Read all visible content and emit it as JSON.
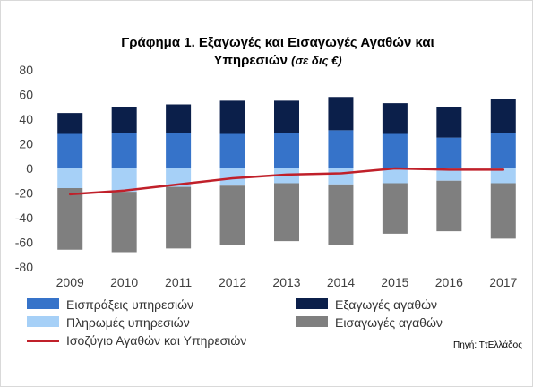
{
  "title": "Γράφημα 1. Εξαγωγές και Εισαγωγές Αγαθών και",
  "title_line2": "Υπηρεσιών",
  "title_unit": "(σε δις €)",
  "source": "Πηγή: ΤτΕλλάδος",
  "colors": {
    "services_receipts": "#3673c9",
    "goods_exports": "#0b1f4a",
    "services_payments": "#a6d0f7",
    "goods_imports": "#7f7f7f",
    "balance": "#c0202a"
  },
  "chart_data": {
    "type": "bar",
    "stacked": true,
    "categories": [
      "2009",
      "2010",
      "2011",
      "2012",
      "2013",
      "2014",
      "2015",
      "2016",
      "2017"
    ],
    "ylim": [
      -80,
      80
    ],
    "yticks": [
      80,
      60,
      40,
      20,
      0,
      -20,
      -40,
      -60,
      -80
    ],
    "series": [
      {
        "name": "Εισπράξεις υπηρεσιών",
        "values": [
          28,
          29,
          29,
          28,
          29,
          31,
          28,
          25,
          29
        ]
      },
      {
        "name": "Εξαγωγές αγαθών",
        "values": [
          17,
          21,
          23,
          27,
          26,
          27,
          25,
          25,
          27
        ]
      },
      {
        "name": "Πληρωμές υπηρεσιών",
        "values": [
          -16,
          -19,
          -15,
          -14,
          -12,
          -13,
          -12,
          -10,
          -12
        ]
      },
      {
        "name": "Εισαγωγές αγαθών",
        "values": [
          -50,
          -49,
          -50,
          -48,
          -47,
          -49,
          -41,
          -41,
          -45
        ]
      }
    ],
    "line": {
      "name": "Ισοζύγιο Αγαθών και Υπηρεσιών",
      "values": [
        -21,
        -18,
        -13,
        -8,
        -5,
        -4,
        0,
        -1,
        -1
      ]
    },
    "legend": [
      "Εισπράξεις υπηρεσιών",
      "Εξαγωγές αγαθών",
      "Πληρωμές υπηρεσιών",
      "Εισαγωγές αγαθών",
      "Ισοζύγιο Αγαθών και Υπηρεσιών"
    ],
    "legend_position": "bottom",
    "grid": false
  }
}
